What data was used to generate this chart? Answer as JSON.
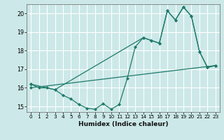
{
  "xlabel": "Humidex (Indice chaleur)",
  "ylabel": "",
  "background_color": "#cce8e8",
  "grid_color": "#b0d4d4",
  "line_color": "#1e7a6a",
  "xlim": [
    -0.5,
    23.5
  ],
  "ylim": [
    14.7,
    20.5
  ],
  "yticks": [
    15,
    16,
    17,
    18,
    19,
    20
  ],
  "xticks": [
    0,
    1,
    2,
    3,
    4,
    5,
    6,
    7,
    8,
    9,
    10,
    11,
    12,
    13,
    14,
    15,
    16,
    17,
    18,
    19,
    20,
    21,
    22,
    23
  ],
  "series": [
    {
      "x": [
        0,
        1,
        2,
        3,
        4,
        5,
        6,
        7,
        8,
        9,
        10,
        11,
        12,
        13,
        14,
        15,
        16,
        17,
        18,
        19,
        20,
        21,
        22,
        23
      ],
      "y": [
        16.2,
        16.0,
        16.0,
        15.9,
        15.6,
        15.4,
        15.1,
        14.9,
        14.85,
        15.15,
        14.85,
        15.1,
        16.5,
        18.2,
        18.7,
        18.55,
        18.4,
        20.15,
        19.65,
        20.35,
        19.85,
        17.95,
        17.1,
        17.2
      ]
    },
    {
      "x": [
        0,
        3,
        14,
        15,
        16,
        17,
        18,
        19,
        20,
        21,
        22,
        23
      ],
      "y": [
        16.2,
        15.9,
        18.7,
        18.55,
        18.4,
        20.15,
        19.65,
        20.35,
        19.85,
        17.95,
        17.1,
        17.2
      ]
    },
    {
      "x": [
        0,
        23
      ],
      "y": [
        16.0,
        17.2
      ]
    }
  ]
}
